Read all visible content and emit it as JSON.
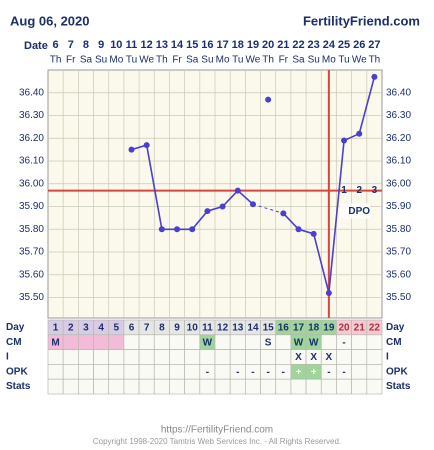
{
  "header": {
    "date": "Aug 06, 2020",
    "site": "FertilityFriend.com",
    "date_label": "Date"
  },
  "chart_data": {
    "type": "line",
    "categories": [
      6,
      7,
      8,
      9,
      10,
      11,
      12,
      13,
      14,
      15,
      16,
      17,
      18,
      19,
      20,
      21,
      22,
      23,
      24,
      25,
      26,
      27
    ],
    "weekdays": [
      "Th",
      "Fr",
      "Sa",
      "Su",
      "Mo",
      "Tu",
      "We",
      "Th",
      "Fr",
      "Sa",
      "Su",
      "Mo",
      "Tu",
      "We",
      "Th",
      "Fr",
      "Sa",
      "Su",
      "Mo",
      "Tu",
      "We",
      "Th"
    ],
    "series": [
      {
        "color": "#4a3fd0",
        "values": [
          null,
          null,
          null,
          null,
          null,
          36.15,
          36.17,
          35.8,
          35.8,
          35.8,
          35.88,
          35.9,
          35.97,
          35.91,
          null,
          35.87,
          35.8,
          35.78,
          35.52,
          36.19,
          36.22,
          36.47
        ]
      }
    ],
    "discarded_values": [
      null,
      null,
      null,
      null,
      null,
      null,
      null,
      null,
      null,
      null,
      null,
      null,
      null,
      null,
      36.37,
      null,
      null,
      null,
      null,
      null,
      null,
      null
    ],
    "ylim": [
      35.41,
      36.5
    ],
    "yticks": [
      {
        "value": 35.5,
        "label": "35.50"
      },
      {
        "value": 35.6,
        "label": "35.60"
      },
      {
        "value": 35.7,
        "label": "35.70"
      },
      {
        "value": 35.8,
        "label": "35.80"
      },
      {
        "value": 35.9,
        "label": "35.90"
      },
      {
        "value": 36.0,
        "label": "36.00"
      },
      {
        "value": 36.1,
        "label": "36.10"
      },
      {
        "value": 36.2,
        "label": "36.20"
      },
      {
        "value": 36.3,
        "label": "36.30"
      },
      {
        "value": 36.4,
        "label": "36.40"
      }
    ],
    "coverline": 35.97,
    "coverline_color": "#d9443f",
    "ovulation_date": 24,
    "dpo": {
      "label": "DPO",
      "values": [
        1,
        2,
        3
      ]
    },
    "grid": true
  },
  "table": {
    "rows": [
      {
        "label": "Day",
        "cells": [
          1,
          2,
          3,
          4,
          5,
          6,
          7,
          8,
          9,
          10,
          11,
          12,
          13,
          14,
          15,
          16,
          17,
          18,
          19,
          20,
          21,
          22
        ]
      },
      {
        "label": "CM",
        "cells": [
          "M",
          null,
          null,
          null,
          null,
          null,
          null,
          null,
          null,
          null,
          "W",
          null,
          null,
          null,
          "S",
          null,
          "W",
          "W",
          null,
          "-",
          null,
          null
        ]
      },
      {
        "label": "I",
        "cells": [
          null,
          null,
          null,
          null,
          null,
          null,
          null,
          null,
          null,
          null,
          null,
          null,
          null,
          null,
          null,
          null,
          "X",
          "X",
          "X",
          null,
          null,
          null
        ]
      },
      {
        "label": "OPK",
        "cells": [
          null,
          null,
          null,
          null,
          null,
          null,
          null,
          null,
          null,
          null,
          "-",
          null,
          "-",
          "-",
          "-",
          "-",
          "+",
          "+",
          "-",
          "-",
          null,
          null
        ]
      },
      {
        "label": "Stats",
        "cells": [
          null,
          null,
          null,
          null,
          null,
          null,
          null,
          null,
          null,
          null,
          null,
          null,
          null,
          null,
          null,
          null,
          null,
          null,
          null,
          null,
          null,
          null
        ]
      }
    ]
  },
  "footer": {
    "url": "https://FertilityFriend.com",
    "copyright": "Copyright 1998-2020 Tamtris Web Services Inc. - All Rights Reserved."
  }
}
